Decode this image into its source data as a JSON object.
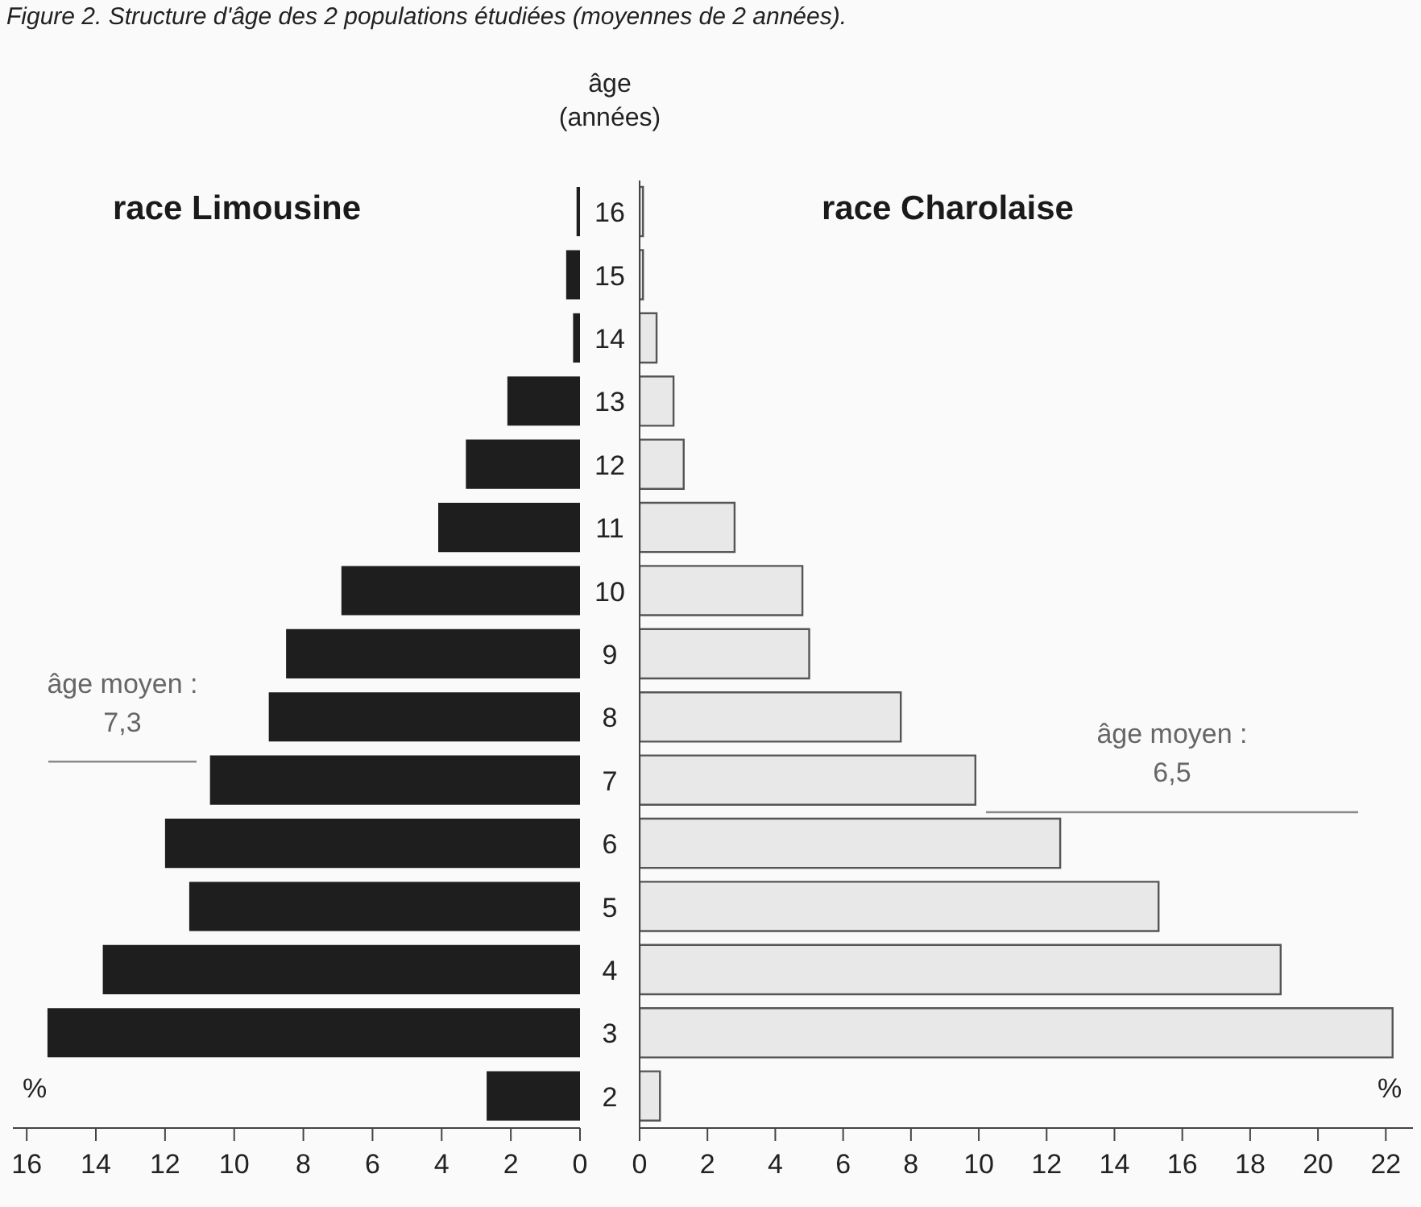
{
  "chart_data": [
    {
      "type": "bar",
      "orientation": "horizontal",
      "title": "race Limousine",
      "xlabel": "%",
      "annotations": [
        "Figure 2. Structure d'âge des 2 populations étudiées (moyennes de 2 années)."
      ],
      "x": [
        16,
        15,
        14,
        13,
        12,
        11,
        10,
        9,
        8,
        7,
        6,
        5,
        4,
        3,
        2
      ],
      "series": [
        {
          "color": "#1e1e1e",
          "values": [
            0.1,
            0.4,
            0.2,
            2.1,
            3.3,
            4.1,
            6.9,
            8.5,
            9.0,
            10.7,
            12.0,
            11.3,
            13.8,
            15.4,
            2.7
          ]
        }
      ],
      "xlim": [
        16.4,
        0
      ],
      "xticks": [
        16,
        14,
        12,
        10,
        8,
        6,
        4,
        2,
        0
      ],
      "ylim": [
        1.5,
        16.5
      ],
      "yticks": [
        2,
        3,
        4,
        5,
        6,
        7,
        8,
        9,
        10,
        11,
        12,
        13,
        14,
        15,
        16
      ],
      "tick_labels": "x",
      "ref_lines": [
        {
          "axis": "y",
          "value": 7.3,
          "label": "âge moyen :\n7,3",
          "color": "#8a8a8a"
        }
      ]
    },
    {
      "type": "bar",
      "orientation": "horizontal",
      "title": "race Charolaise",
      "xlabel": "%",
      "ylabel": "âge\n(années)",
      "x": [
        16,
        15,
        14,
        13,
        12,
        11,
        10,
        9,
        8,
        7,
        6,
        5,
        4,
        3,
        2
      ],
      "series": [
        {
          "color": "#e8e8e8",
          "values": [
            0.1,
            0.1,
            0.5,
            1.0,
            1.3,
            2.8,
            4.8,
            5.0,
            7.7,
            9.9,
            12.4,
            15.3,
            18.9,
            22.2,
            0.6
          ]
        }
      ],
      "xlim": [
        0,
        22.8
      ],
      "xticks": [
        0,
        2,
        4,
        6,
        8,
        10,
        12,
        14,
        16,
        18,
        20,
        22
      ],
      "ylim": [
        1.5,
        16.5
      ],
      "yticks": [
        2,
        3,
        4,
        5,
        6,
        7,
        8,
        9,
        10,
        11,
        12,
        13,
        14,
        15,
        16
      ],
      "ref_lines": [
        {
          "axis": "y",
          "value": 6.5,
          "label": "âge moyen :\n6,5",
          "color": "#8a8a8a"
        }
      ]
    }
  ]
}
